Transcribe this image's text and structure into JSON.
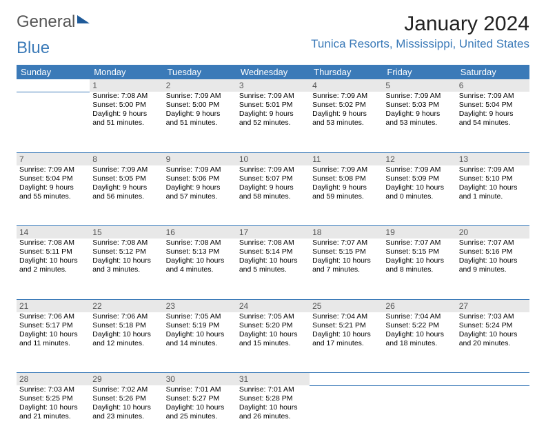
{
  "logo": {
    "part1": "General",
    "part2": "Blue"
  },
  "title": "January 2024",
  "location": "Tunica Resorts, Mississippi, United States",
  "day_headers": [
    "Sunday",
    "Monday",
    "Tuesday",
    "Wednesday",
    "Thursday",
    "Friday",
    "Saturday"
  ],
  "colors": {
    "header_bg": "#3b7ab8",
    "header_text": "#ffffff",
    "daynum_bg": "#e8e8e8",
    "border": "#3b7ab8",
    "location_text": "#3b7ab8"
  },
  "weeks": [
    {
      "nums": [
        "",
        "1",
        "2",
        "3",
        "4",
        "5",
        "6"
      ],
      "cells": [
        [],
        [
          "Sunrise: 7:08 AM",
          "Sunset: 5:00 PM",
          "Daylight: 9 hours",
          "and 51 minutes."
        ],
        [
          "Sunrise: 7:09 AM",
          "Sunset: 5:00 PM",
          "Daylight: 9 hours",
          "and 51 minutes."
        ],
        [
          "Sunrise: 7:09 AM",
          "Sunset: 5:01 PM",
          "Daylight: 9 hours",
          "and 52 minutes."
        ],
        [
          "Sunrise: 7:09 AM",
          "Sunset: 5:02 PM",
          "Daylight: 9 hours",
          "and 53 minutes."
        ],
        [
          "Sunrise: 7:09 AM",
          "Sunset: 5:03 PM",
          "Daylight: 9 hours",
          "and 53 minutes."
        ],
        [
          "Sunrise: 7:09 AM",
          "Sunset: 5:04 PM",
          "Daylight: 9 hours",
          "and 54 minutes."
        ]
      ]
    },
    {
      "nums": [
        "7",
        "8",
        "9",
        "10",
        "11",
        "12",
        "13"
      ],
      "cells": [
        [
          "Sunrise: 7:09 AM",
          "Sunset: 5:04 PM",
          "Daylight: 9 hours",
          "and 55 minutes."
        ],
        [
          "Sunrise: 7:09 AM",
          "Sunset: 5:05 PM",
          "Daylight: 9 hours",
          "and 56 minutes."
        ],
        [
          "Sunrise: 7:09 AM",
          "Sunset: 5:06 PM",
          "Daylight: 9 hours",
          "and 57 minutes."
        ],
        [
          "Sunrise: 7:09 AM",
          "Sunset: 5:07 PM",
          "Daylight: 9 hours",
          "and 58 minutes."
        ],
        [
          "Sunrise: 7:09 AM",
          "Sunset: 5:08 PM",
          "Daylight: 9 hours",
          "and 59 minutes."
        ],
        [
          "Sunrise: 7:09 AM",
          "Sunset: 5:09 PM",
          "Daylight: 10 hours",
          "and 0 minutes."
        ],
        [
          "Sunrise: 7:09 AM",
          "Sunset: 5:10 PM",
          "Daylight: 10 hours",
          "and 1 minute."
        ]
      ]
    },
    {
      "nums": [
        "14",
        "15",
        "16",
        "17",
        "18",
        "19",
        "20"
      ],
      "cells": [
        [
          "Sunrise: 7:08 AM",
          "Sunset: 5:11 PM",
          "Daylight: 10 hours",
          "and 2 minutes."
        ],
        [
          "Sunrise: 7:08 AM",
          "Sunset: 5:12 PM",
          "Daylight: 10 hours",
          "and 3 minutes."
        ],
        [
          "Sunrise: 7:08 AM",
          "Sunset: 5:13 PM",
          "Daylight: 10 hours",
          "and 4 minutes."
        ],
        [
          "Sunrise: 7:08 AM",
          "Sunset: 5:14 PM",
          "Daylight: 10 hours",
          "and 5 minutes."
        ],
        [
          "Sunrise: 7:07 AM",
          "Sunset: 5:15 PM",
          "Daylight: 10 hours",
          "and 7 minutes."
        ],
        [
          "Sunrise: 7:07 AM",
          "Sunset: 5:15 PM",
          "Daylight: 10 hours",
          "and 8 minutes."
        ],
        [
          "Sunrise: 7:07 AM",
          "Sunset: 5:16 PM",
          "Daylight: 10 hours",
          "and 9 minutes."
        ]
      ]
    },
    {
      "nums": [
        "21",
        "22",
        "23",
        "24",
        "25",
        "26",
        "27"
      ],
      "cells": [
        [
          "Sunrise: 7:06 AM",
          "Sunset: 5:17 PM",
          "Daylight: 10 hours",
          "and 11 minutes."
        ],
        [
          "Sunrise: 7:06 AM",
          "Sunset: 5:18 PM",
          "Daylight: 10 hours",
          "and 12 minutes."
        ],
        [
          "Sunrise: 7:05 AM",
          "Sunset: 5:19 PM",
          "Daylight: 10 hours",
          "and 14 minutes."
        ],
        [
          "Sunrise: 7:05 AM",
          "Sunset: 5:20 PM",
          "Daylight: 10 hours",
          "and 15 minutes."
        ],
        [
          "Sunrise: 7:04 AM",
          "Sunset: 5:21 PM",
          "Daylight: 10 hours",
          "and 17 minutes."
        ],
        [
          "Sunrise: 7:04 AM",
          "Sunset: 5:22 PM",
          "Daylight: 10 hours",
          "and 18 minutes."
        ],
        [
          "Sunrise: 7:03 AM",
          "Sunset: 5:24 PM",
          "Daylight: 10 hours",
          "and 20 minutes."
        ]
      ]
    },
    {
      "nums": [
        "28",
        "29",
        "30",
        "31",
        "",
        "",
        ""
      ],
      "cells": [
        [
          "Sunrise: 7:03 AM",
          "Sunset: 5:25 PM",
          "Daylight: 10 hours",
          "and 21 minutes."
        ],
        [
          "Sunrise: 7:02 AM",
          "Sunset: 5:26 PM",
          "Daylight: 10 hours",
          "and 23 minutes."
        ],
        [
          "Sunrise: 7:01 AM",
          "Sunset: 5:27 PM",
          "Daylight: 10 hours",
          "and 25 minutes."
        ],
        [
          "Sunrise: 7:01 AM",
          "Sunset: 5:28 PM",
          "Daylight: 10 hours",
          "and 26 minutes."
        ],
        [],
        [],
        []
      ]
    }
  ]
}
